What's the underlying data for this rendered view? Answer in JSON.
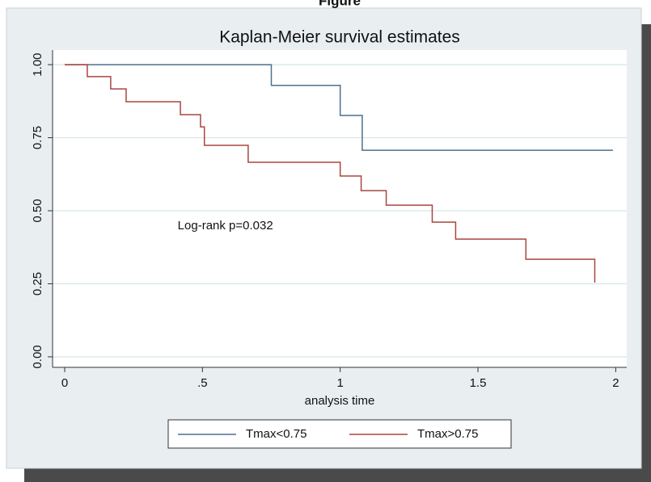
{
  "figure_label": "Figure",
  "chart_data": {
    "type": "step-line",
    "title": "Kaplan-Meier survival estimates",
    "x_label": "analysis time",
    "annotation": {
      "text": "Log-rank p=0.032",
      "x": 0.41,
      "y": 0.447
    },
    "xlim": [
      -0.044,
      2.04
    ],
    "ylim": [
      -0.036,
      1.05
    ],
    "xticks": [
      0,
      {
        "value": 0.5,
        "label": ".5"
      },
      1,
      1.5,
      2
    ],
    "yticks": [
      {
        "value": 0,
        "label": "0.00"
      },
      {
        "value": 0.25,
        "label": "0.25"
      },
      {
        "value": 0.5,
        "label": "0.50"
      },
      {
        "value": 0.75,
        "label": "0.75"
      },
      {
        "value": 1,
        "label": "1.00"
      }
    ],
    "grid": true,
    "series": [
      {
        "name": "Tmax<0.75",
        "color": "#4d6f8f",
        "x": [
          0,
          0.75,
          0.75,
          1.0,
          1.0,
          1.08,
          1.08,
          1.99
        ],
        "values": [
          1,
          1,
          0.929,
          0.929,
          0.826,
          0.826,
          0.707,
          0.707
        ]
      },
      {
        "name": "Tmax>0.75",
        "color": "#a8463f",
        "x": [
          0,
          0.082,
          0.082,
          0.167,
          0.167,
          0.223,
          0.223,
          0.42,
          0.42,
          0.493,
          0.493,
          0.507,
          0.507,
          0.666,
          0.666,
          1.0,
          1.0,
          1.076,
          1.076,
          1.167,
          1.167,
          1.334,
          1.334,
          1.419,
          1.419,
          1.674,
          1.674,
          1.924,
          1.924
        ],
        "values": [
          1,
          1,
          0.959,
          0.959,
          0.917,
          0.917,
          0.873,
          0.873,
          0.829,
          0.829,
          0.787,
          0.787,
          0.724,
          0.724,
          0.666,
          0.666,
          0.619,
          0.619,
          0.569,
          0.569,
          0.519,
          0.519,
          0.461,
          0.461,
          0.403,
          0.403,
          0.334,
          0.334,
          0.254
        ]
      }
    ]
  }
}
